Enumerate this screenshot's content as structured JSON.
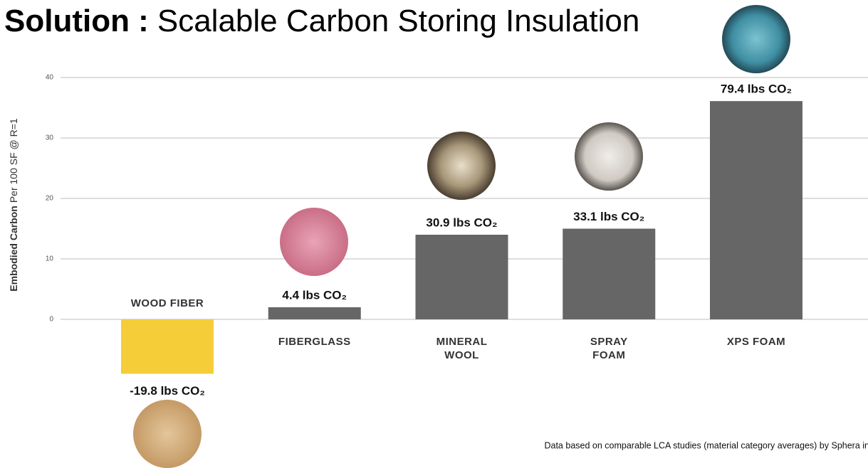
{
  "chart_data": {
    "type": "bar",
    "title": "Solution :",
    "subtitle": "Scalable Carbon Storing Insulation",
    "y_label_bold": "Embodied Carbon",
    "y_label": "Per 100 SF @ R=1",
    "note": "Data based on comparable LCA studies (material category averages) by Sphera in",
    "categories": [
      "WOOD FIBER",
      "FIBERGLASS",
      "MINERAL WOOL",
      "SPRAY FOAM",
      "XPS FOAM"
    ],
    "values": [
      -9.0,
      2.0,
      14.0,
      15.0,
      36.1
    ],
    "value_labels": [
      "-19.8 lbs CO₂",
      "4.4 lbs CO₂",
      "30.9 lbs CO₂",
      "33.1 lbs CO₂",
      "79.4 lbs CO₂"
    ],
    "colors": [
      "#f5cd38",
      "#666666",
      "#666666",
      "#666666",
      "#666666"
    ],
    "ylim": [
      -12,
      40
    ],
    "yticks": [
      0,
      10,
      20,
      30,
      40
    ],
    "grid": true
  }
}
